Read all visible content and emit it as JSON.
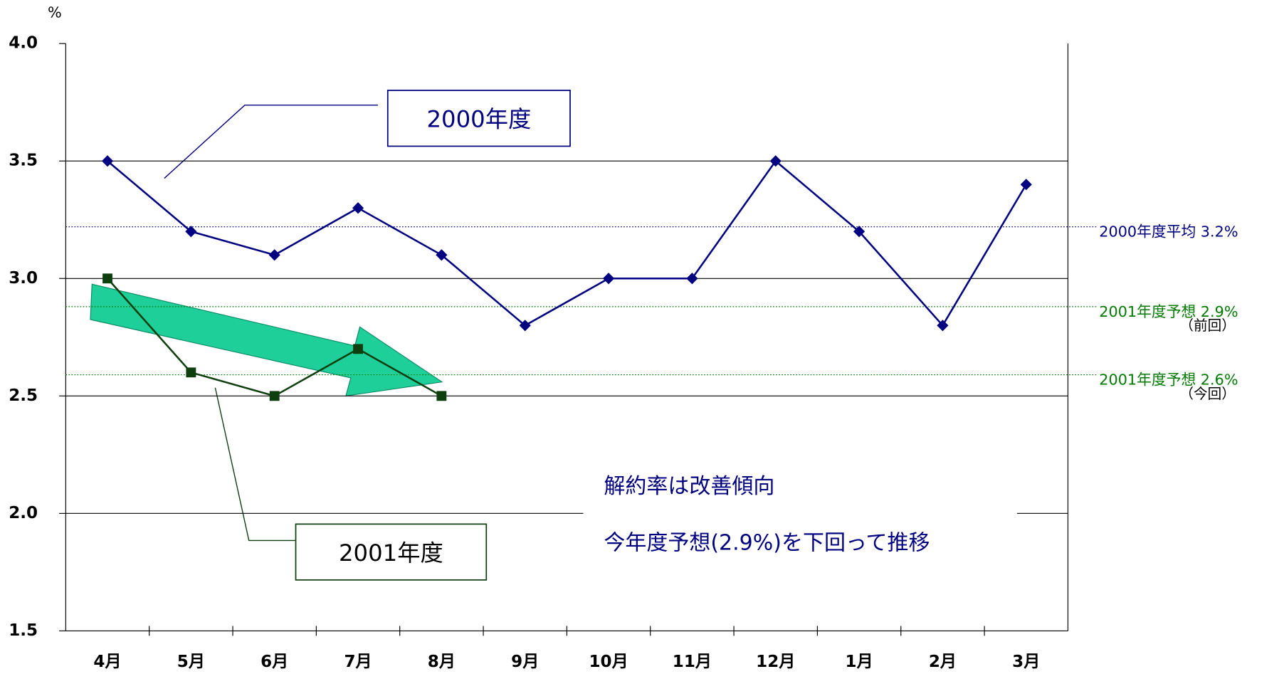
{
  "chart_data": {
    "type": "line",
    "y_unit": "%",
    "categories": [
      "4月",
      "5月",
      "6月",
      "7月",
      "8月",
      "9月",
      "10月",
      "11月",
      "12月",
      "1月",
      "2月",
      "3月"
    ],
    "series": [
      {
        "name": "2000年度",
        "color": "#000080",
        "marker": "diamond",
        "values": [
          3.5,
          3.2,
          3.1,
          3.3,
          3.1,
          2.8,
          3.0,
          3.0,
          3.5,
          3.2,
          2.8,
          3.4
        ]
      },
      {
        "name": "2001年度",
        "color": "#0f3f0f",
        "marker": "square",
        "values": [
          3.0,
          2.6,
          2.5,
          2.7,
          2.5,
          null,
          null,
          null,
          null,
          null,
          null,
          null
        ]
      }
    ],
    "ylim": [
      1.5,
      4.0
    ],
    "yticks": [
      {
        "value": 1.5,
        "label": "1.5"
      },
      {
        "value": 2,
        "label": "2.0"
      },
      {
        "value": 2.5,
        "label": "2.5"
      },
      {
        "value": 3,
        "label": "3.0"
      },
      {
        "value": 3.5,
        "label": "3.5"
      },
      {
        "value": 4,
        "label": "4.0"
      }
    ],
    "grid": true,
    "reference_lines": [
      {
        "value": 3.22,
        "label": "2000年度平均 3.2%",
        "color": "#000080"
      },
      {
        "value": 2.88,
        "label": "2001年度予想 2.9%",
        "sublabel": "（前回）",
        "color": "#007a00"
      },
      {
        "value": 2.59,
        "label": "2001年度予想 2.6%",
        "sublabel": "（今回）",
        "color": "#007a00"
      }
    ],
    "annotations": [
      "解約率は改善傾向",
      "今年度予想(2.9%)を下回って推移"
    ]
  }
}
